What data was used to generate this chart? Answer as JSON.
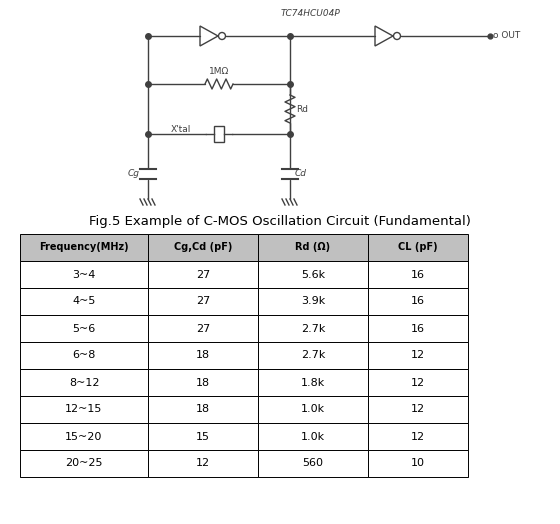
{
  "title": "Fig.5 Example of C-MOS Oscillation Circuit (Fundamental)",
  "ic_label": "TC74HCU04P",
  "out_label": "o OUT",
  "resistor1_label": "1MΩ",
  "resistor2_label": "Rd",
  "crystal_label": "X'tal",
  "cap1_label": "Cg",
  "cap2_label": "Cd",
  "table_headers": [
    "Frequency(MHz)",
    "Cg,Cd (pF)",
    "Rd (Ω)",
    "CL (pF)"
  ],
  "table_data": [
    [
      "3~4",
      "27",
      "5.6k",
      "16"
    ],
    [
      "4~5",
      "27",
      "3.9k",
      "16"
    ],
    [
      "5~6",
      "27",
      "2.7k",
      "16"
    ],
    [
      "6~8",
      "18",
      "2.7k",
      "12"
    ],
    [
      "8~12",
      "18",
      "1.8k",
      "12"
    ],
    [
      "12~15",
      "18",
      "1.0k",
      "12"
    ],
    [
      "15~20",
      "15",
      "1.0k",
      "12"
    ],
    [
      "20~25",
      "12",
      "560",
      "10"
    ]
  ],
  "header_bg": "#c0c0c0",
  "row_bg": "#ffffff",
  "border_color": "#000000",
  "text_color": "#000000",
  "circuit_color": "#404040",
  "bg_color": "#ffffff",
  "fig_w": 5.6,
  "fig_h": 5.24,
  "dpi": 100
}
